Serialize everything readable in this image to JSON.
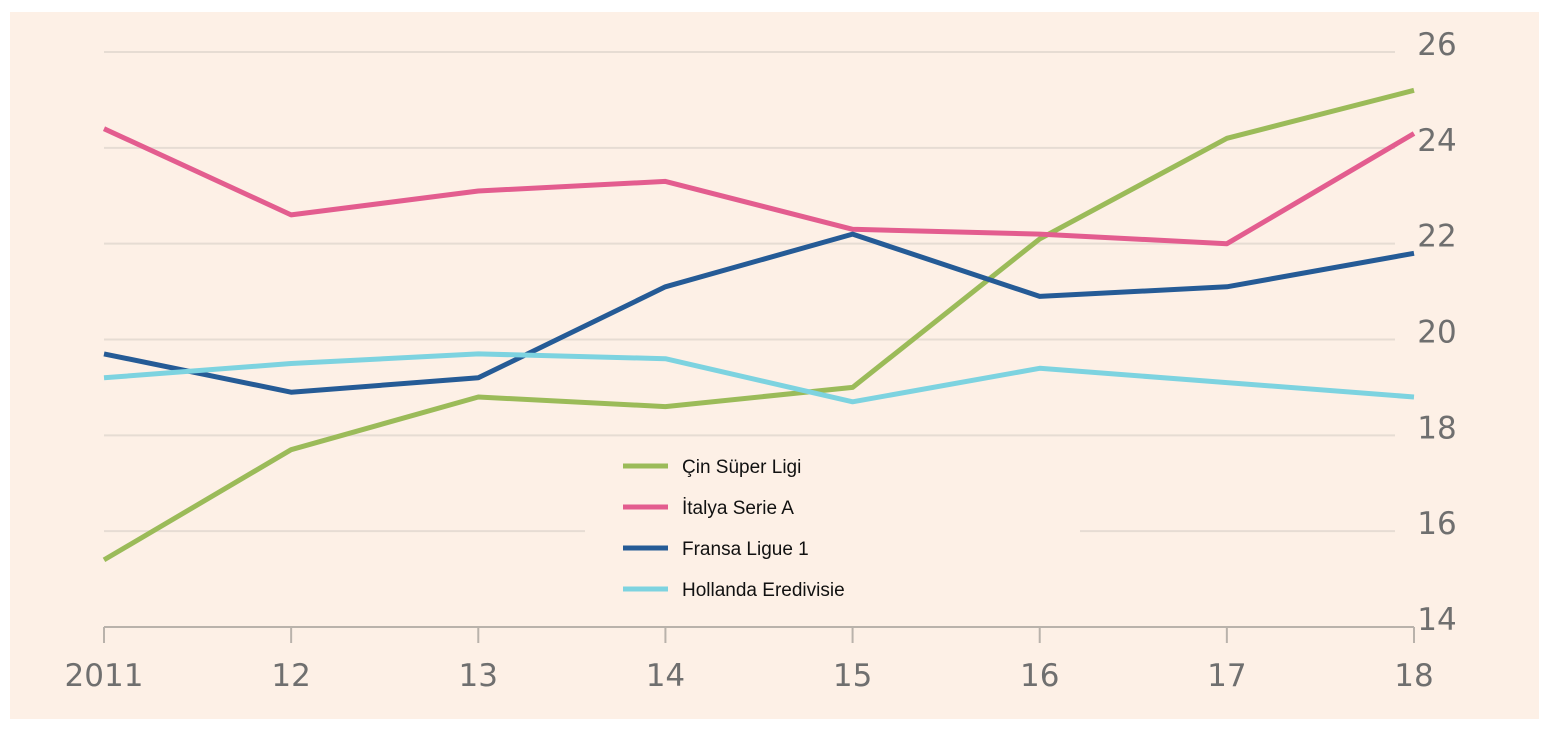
{
  "chart_data": {
    "type": "line",
    "title": "",
    "xlabel": "",
    "ylabel": "",
    "x": [
      "2011",
      "12",
      "13",
      "14",
      "15",
      "16",
      "17",
      "18"
    ],
    "ylim": [
      14,
      26
    ],
    "yticks": [
      "14",
      "16",
      "18",
      "20",
      "22",
      "24",
      "26"
    ],
    "y_axis_position": "right",
    "grid": true,
    "legend_position": "center-bottom",
    "background": "#fdf0e6",
    "series": [
      {
        "name": "Çin Süper Ligi",
        "color": "#9bbb59",
        "values": [
          15.4,
          17.7,
          18.8,
          18.6,
          19.0,
          22.1,
          24.2,
          25.2
        ]
      },
      {
        "name": "İtalya Serie A",
        "color": "#e35d8f",
        "values": [
          24.4,
          22.6,
          23.1,
          23.3,
          22.3,
          22.2,
          22.0,
          24.3
        ]
      },
      {
        "name": "Fransa Ligue 1",
        "color": "#255b96",
        "values": [
          19.7,
          18.9,
          19.2,
          21.1,
          22.2,
          20.9,
          21.1,
          21.8
        ]
      },
      {
        "name": "Hollanda Eredivisie",
        "color": "#7dd3e0",
        "values": [
          19.2,
          19.5,
          19.7,
          19.6,
          18.7,
          19.4,
          19.1,
          18.8
        ]
      }
    ]
  }
}
